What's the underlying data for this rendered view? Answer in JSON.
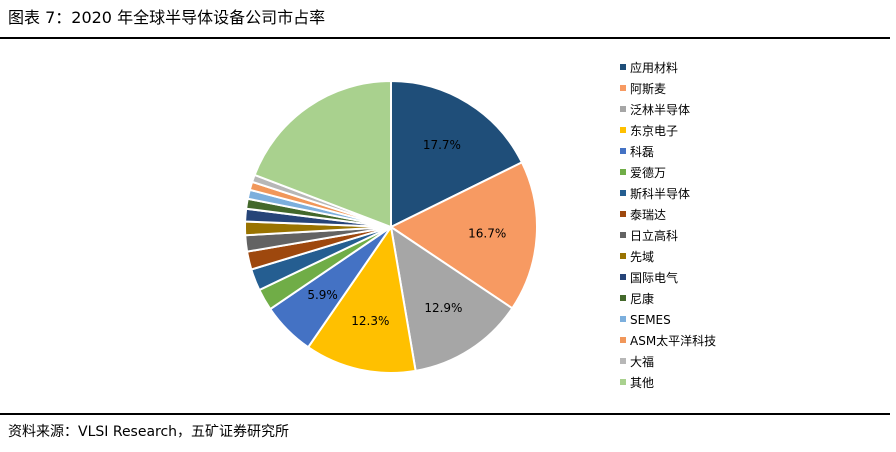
{
  "figure": {
    "title": "图表 7：2020 年全球半导体设备公司市占率",
    "source": "资料来源：VLSI  Research，五矿证券研究所"
  },
  "chart_data": {
    "type": "pie",
    "title": "2020 年全球半导体设备公司市占率",
    "unit": "%",
    "legend_position": "right",
    "start": "top, clockwise",
    "slices": [
      {
        "name": "应用材料",
        "value": 17.7,
        "label": "17.7%",
        "color": "#1f4e79"
      },
      {
        "name": "阿斯麦",
        "value": 16.7,
        "label": "16.7%",
        "color": "#f79a62"
      },
      {
        "name": "泛林半导体",
        "value": 12.9,
        "label": "12.9%",
        "color": "#a6a6a6"
      },
      {
        "name": "东京电子",
        "value": 12.3,
        "label": "12.3%",
        "color": "#ffc000"
      },
      {
        "name": "科磊",
        "value": 5.9,
        "label": "5.9%",
        "color": "#4472c4"
      },
      {
        "name": "爱德万",
        "value": 2.4,
        "color": "#70ad47"
      },
      {
        "name": "斯科半导体",
        "value": 2.4,
        "color": "#255e91"
      },
      {
        "name": "泰瑞达",
        "value": 2.0,
        "color": "#9e480e"
      },
      {
        "name": "日立高科",
        "value": 1.8,
        "color": "#636363"
      },
      {
        "name": "先域",
        "value": 1.5,
        "color": "#997300"
      },
      {
        "name": "国际电气",
        "value": 1.4,
        "color": "#264478"
      },
      {
        "name": "尼康",
        "value": 1.1,
        "color": "#43682b"
      },
      {
        "name": "SEMES",
        "value": 1.0,
        "color": "#7cafdd"
      },
      {
        "name": "ASM太平洋科技",
        "value": 0.9,
        "color": "#f1975a"
      },
      {
        "name": "大福",
        "value": 0.8,
        "color": "#b7b7b7"
      },
      {
        "name": "其他",
        "value": 19.2,
        "color": "#a9d18e"
      }
    ]
  }
}
